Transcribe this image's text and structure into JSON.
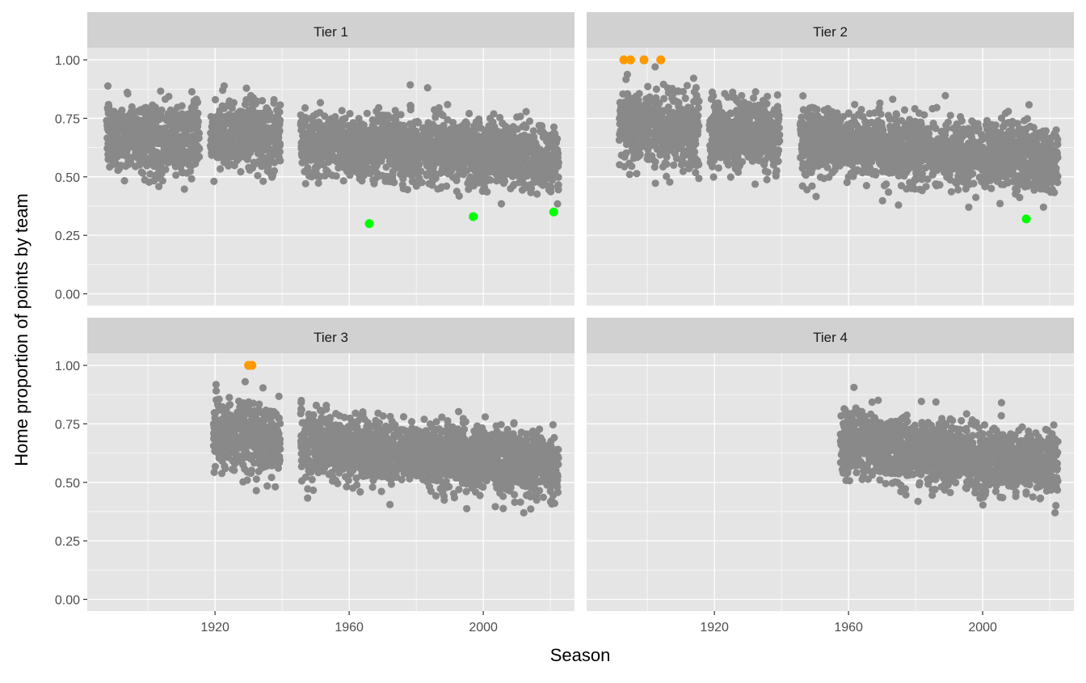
{
  "chart_data": {
    "type": "scatter",
    "xlabel": "Season",
    "ylabel": "Home proportion of points by team",
    "xlim": [
      1881.9,
      2027.2
    ],
    "ylim": [
      -0.05,
      1.052
    ],
    "x_ticks": [
      1920,
      1960,
      2000
    ],
    "x_tick_labels": [
      "1920",
      "1960",
      "2000"
    ],
    "y_ticks": [
      0,
      0.25,
      0.5,
      0.75,
      1
    ],
    "y_tick_labels": [
      "0.00",
      "0.25",
      "0.50",
      "0.75",
      "1.00"
    ],
    "grid": true,
    "legend": "none",
    "colors": {
      "default": "#898989",
      "max": "#FF9900",
      "min": "#00FF00",
      "panel": "#E5E5E5",
      "strip": "#D1D1D1"
    },
    "facets": [
      {
        "label": "Tier 1",
        "eras": [
          {
            "seasons": [
              1888,
              1915
            ],
            "mean": [
              0.68,
              0.66
            ],
            "sd": 0.075
          },
          {
            "seasons": [
              1919,
              1939
            ],
            "mean": [
              0.68,
              0.67
            ],
            "sd": 0.07
          },
          {
            "seasons": [
              1946,
              2022
            ],
            "mean": [
              0.65,
              0.575
            ],
            "sd": 0.07
          }
        ],
        "highlighted": [
          {
            "x": 1966,
            "y": 0.3,
            "kind": "min"
          },
          {
            "x": 1997,
            "y": 0.33,
            "kind": "min"
          },
          {
            "x": 2021,
            "y": 0.35,
            "kind": "min"
          }
        ]
      },
      {
        "label": "Tier 2",
        "eras": [
          {
            "seasons": [
              1892,
              1915
            ],
            "mean": [
              0.73,
              0.69
            ],
            "sd": 0.08
          },
          {
            "seasons": [
              1919,
              1939
            ],
            "mean": [
              0.69,
              0.68
            ],
            "sd": 0.075
          },
          {
            "seasons": [
              1946,
              2022
            ],
            "mean": [
              0.66,
              0.57
            ],
            "sd": 0.07
          }
        ],
        "highlighted": [
          {
            "x": 1893,
            "y": 1.0,
            "kind": "max"
          },
          {
            "x": 1895,
            "y": 1.0,
            "kind": "max"
          },
          {
            "x": 1899,
            "y": 1.0,
            "kind": "max"
          },
          {
            "x": 1904,
            "y": 1.0,
            "kind": "max"
          },
          {
            "x": 2013,
            "y": 0.32,
            "kind": "min"
          }
        ]
      },
      {
        "label": "Tier 3",
        "eras": [
          {
            "seasons": [
              1920,
              1939
            ],
            "mean": [
              0.71,
              0.69
            ],
            "sd": 0.075
          },
          {
            "seasons": [
              1946,
              2022
            ],
            "mean": [
              0.66,
              0.57
            ],
            "sd": 0.07
          }
        ],
        "highlighted": [
          {
            "x": 1930,
            "y": 1.0,
            "kind": "max"
          },
          {
            "x": 1931,
            "y": 1.0,
            "kind": "max"
          }
        ]
      },
      {
        "label": "Tier 4",
        "eras": [
          {
            "seasons": [
              1958,
              2022
            ],
            "mean": [
              0.67,
              0.57
            ],
            "sd": 0.07
          }
        ],
        "highlighted": []
      }
    ]
  }
}
